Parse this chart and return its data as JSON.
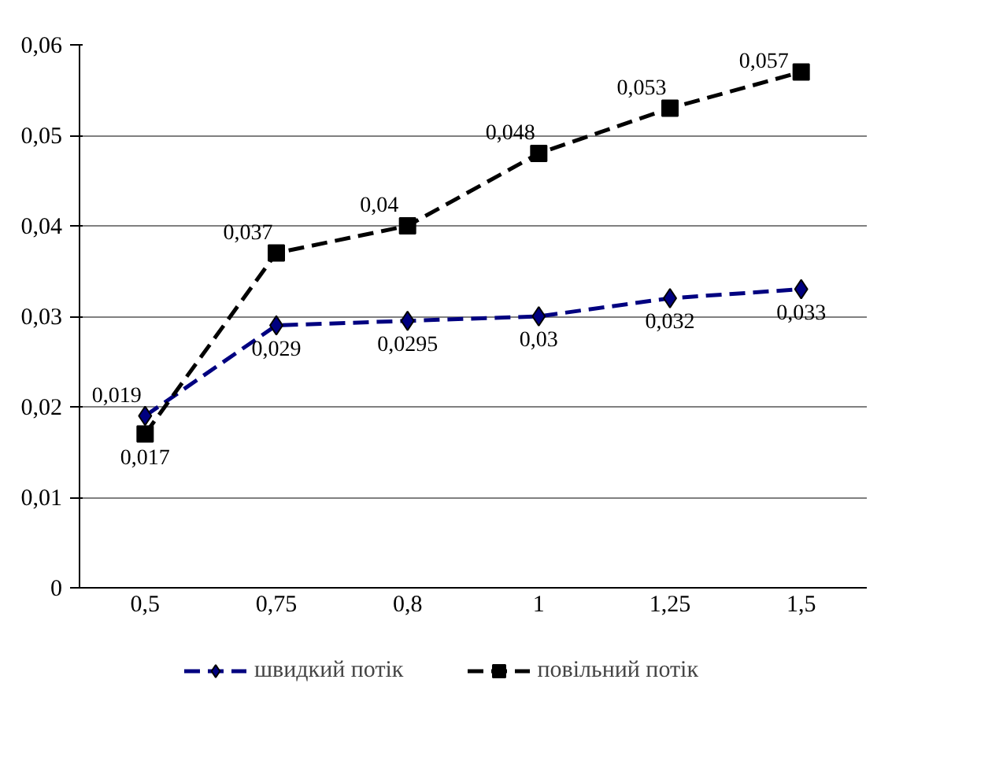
{
  "chart_data": {
    "type": "line",
    "categories": [
      "0,5",
      "0,75",
      "0,8",
      "1",
      "1,25",
      "1,5"
    ],
    "ylim": [
      0,
      0.06
    ],
    "yticks": [
      0,
      {
        "value": 0.01,
        "label": "0,01"
      },
      {
        "value": 0.02,
        "label": "0,02"
      },
      {
        "value": 0.03,
        "label": "0,03"
      },
      {
        "value": 0.04,
        "label": "0,04"
      },
      {
        "value": 0.05,
        "label": "0,05"
      },
      {
        "value": 0.06,
        "label": "0,06"
      }
    ],
    "grid": "y",
    "legend": "bottom",
    "line_style": "dashed",
    "series": [
      {
        "name": "швидкий потік",
        "color": "#000080",
        "marker": "diamond",
        "values": [
          0.019,
          0.029,
          0.0295,
          0.03,
          0.032,
          0.033
        ],
        "value_labels": [
          "0,019",
          "0,029",
          "0,0295",
          "0,03",
          "0,032",
          "0,033"
        ]
      },
      {
        "name": "повільний потік",
        "color": "#000000",
        "marker": "square",
        "values": [
          0.017,
          0.037,
          0.04,
          0.048,
          0.053,
          0.057
        ],
        "value_labels": [
          "0,017",
          "0,037",
          "0,04",
          "0,048",
          "0,053",
          "0,057"
        ]
      }
    ]
  }
}
